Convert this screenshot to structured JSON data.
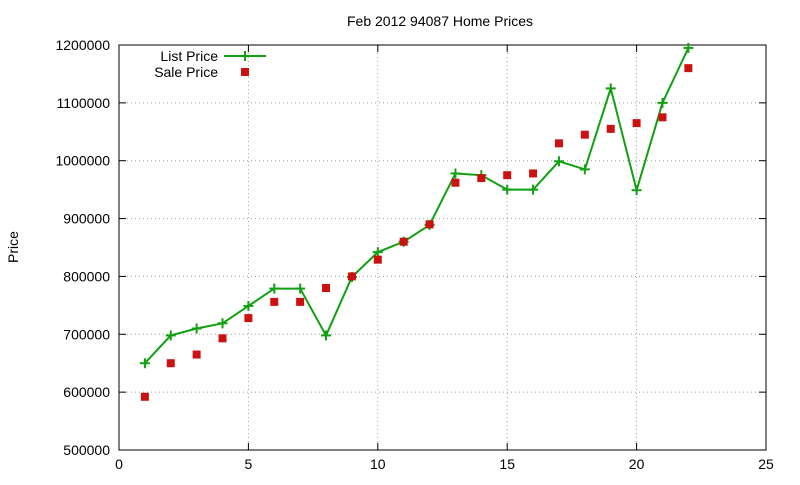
{
  "chart_data": {
    "type": "line",
    "title": "Feb 2012 94087 Home Prices",
    "xlabel": "",
    "ylabel": "Price",
    "xlim": [
      0,
      25
    ],
    "ylim": [
      500000,
      1200000
    ],
    "x_ticks": [
      0,
      5,
      10,
      15,
      20,
      25
    ],
    "y_ticks": [
      500000,
      600000,
      700000,
      800000,
      900000,
      1000000,
      1100000,
      1200000
    ],
    "grid": true,
    "legend_position": "top-left",
    "series": [
      {
        "name": "List Price",
        "style": "line-with-plus-markers",
        "color": "#11a011",
        "points": [
          [
            1,
            650000
          ],
          [
            2,
            698000
          ],
          [
            3,
            710000
          ],
          [
            4,
            719000
          ],
          [
            5,
            749000
          ],
          [
            6,
            779000
          ],
          [
            7,
            779000
          ],
          [
            8,
            698000
          ],
          [
            9,
            799000
          ],
          [
            10,
            842000
          ],
          [
            11,
            860000
          ],
          [
            12,
            889000
          ],
          [
            13,
            978000
          ],
          [
            14,
            975000
          ],
          [
            15,
            950000
          ],
          [
            16,
            950000
          ],
          [
            17,
            999000
          ],
          [
            18,
            985000
          ],
          [
            19,
            1125000
          ],
          [
            20,
            949000
          ],
          [
            21,
            1100000
          ],
          [
            22,
            1195000
          ]
        ]
      },
      {
        "name": "Sale Price",
        "style": "square-markers",
        "color": "#cc1111",
        "points": [
          [
            1,
            592000
          ],
          [
            2,
            650000
          ],
          [
            3,
            665000
          ],
          [
            4,
            693000
          ],
          [
            5,
            728000
          ],
          [
            6,
            756000
          ],
          [
            7,
            756000
          ],
          [
            8,
            780000
          ],
          [
            9,
            800000
          ],
          [
            10,
            829000
          ],
          [
            11,
            860000
          ],
          [
            12,
            890000
          ],
          [
            13,
            962000
          ],
          [
            14,
            970000
          ],
          [
            15,
            975000
          ],
          [
            16,
            978000
          ],
          [
            17,
            1030000
          ],
          [
            18,
            1045000
          ],
          [
            19,
            1055000
          ],
          [
            20,
            1065000
          ],
          [
            21,
            1075000
          ],
          [
            22,
            1160000
          ]
        ]
      }
    ]
  }
}
